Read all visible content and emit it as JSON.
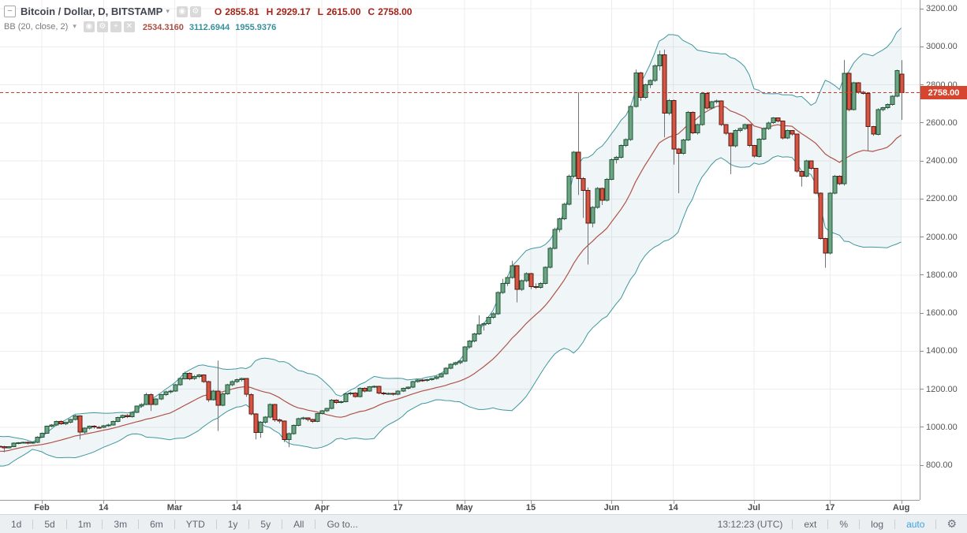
{
  "legend": {
    "symbol_row": {
      "collapse_glyph": "−",
      "title": "Bitcoin / Dollar, D, BITSTAMP",
      "caret": "▾",
      "buttons": [
        {
          "name": "hide-symbol-button",
          "glyph": "◉"
        },
        {
          "name": "symbol-settings-button",
          "glyph": "⚙"
        }
      ],
      "ohlc": [
        [
          "O",
          "2855.81"
        ],
        [
          "H",
          "2929.17"
        ],
        [
          "L",
          "2615.00"
        ],
        [
          "C",
          "2758.00"
        ]
      ],
      "ohlc_color": "#a42318"
    },
    "indicator_row": {
      "title": "BB (20, close, 2)",
      "caret": "▾",
      "buttons": [
        {
          "name": "hide-indicator-button",
          "glyph": "◉"
        },
        {
          "name": "indicator-settings-button",
          "glyph": "⚙"
        },
        {
          "name": "add-indicator-button",
          "glyph": "+"
        },
        {
          "name": "remove-indicator-button",
          "glyph": "✕"
        }
      ],
      "values": [
        {
          "text": "2534.3160",
          "color": "#ab4d43"
        },
        {
          "text": "3112.6944",
          "color": "#36909c"
        },
        {
          "text": "1955.9376",
          "color": "#36909c"
        }
      ]
    }
  },
  "toolbar": {
    "ranges": [
      "1d",
      "5d",
      "1m",
      "3m",
      "6m",
      "YTD",
      "1y",
      "5y",
      "All"
    ],
    "goto_label": "Go to...",
    "clock": "13:12:23 (UTC)",
    "right_items": [
      {
        "label": "ext",
        "color": "#5d6570"
      },
      {
        "label": "%",
        "color": "#5d6570"
      },
      {
        "label": "log",
        "color": "#5d6570"
      },
      {
        "label": "auto",
        "color": "#3aa3e3"
      }
    ],
    "gear_glyph": "⚙"
  },
  "chart_data": {
    "type": "candlestick",
    "title": "Bitcoin / Dollar, D, BITSTAMP",
    "interval": "D",
    "exchange": "BITSTAMP",
    "indicator": {
      "name": "BB",
      "params": "(20, close, 2)",
      "window": 20,
      "mult": 2,
      "values": [
        2534.316,
        3112.6944,
        1955.9376
      ]
    },
    "last_price": {
      "text": "2758.00",
      "value": 2758,
      "tag_color": "#d6452f",
      "line_color": "#cf352a"
    },
    "ohlc_current": {
      "open": 2855.81,
      "high": 2929.17,
      "low": 2615.0,
      "close": 2758.0
    },
    "grid": true,
    "y_axis": {
      "min": 800,
      "max": 3200,
      "step": 200
    },
    "x_axis": {
      "labels": [
        {
          "text": "Feb",
          "day": 0
        },
        {
          "text": "14",
          "day": 13
        },
        {
          "text": "Mar",
          "day": 28
        },
        {
          "text": "14",
          "day": 41
        },
        {
          "text": "Apr",
          "day": 59
        },
        {
          "text": "17",
          "day": 75
        },
        {
          "text": "May",
          "day": 89
        },
        {
          "text": "15",
          "day": 103
        },
        {
          "text": "Jun",
          "day": 120
        },
        {
          "text": "14",
          "day": 133
        },
        {
          "text": "Jul",
          "day": 150
        },
        {
          "text": "17",
          "day": 166
        },
        {
          "text": "Aug",
          "day": 181
        }
      ]
    },
    "layout": {
      "bars_before_feb1": 30
    },
    "colors": {
      "up_fill": "#6ba583",
      "up_border": "#225437",
      "down_fill": "#d75442",
      "down_border": "#5b1a13",
      "wick": "#737375",
      "band": "#3f97a0",
      "band_fill": "rgba(67,145,155,0.08)",
      "mid": "#b0524a",
      "grid": "#ececee",
      "axis_text": "#555555"
    },
    "candles": [
      [
        910,
        912,
        898,
        905
      ],
      [
        905,
        908,
        886,
        890
      ],
      [
        890,
        903,
        885,
        900
      ],
      [
        900,
        902,
        812,
        820
      ],
      [
        820,
        824,
        770,
        785
      ],
      [
        785,
        810,
        780,
        805
      ],
      [
        805,
        822,
        800,
        818
      ],
      [
        818,
        834,
        812,
        830
      ],
      [
        830,
        842,
        824,
        838
      ],
      [
        838,
        903,
        832,
        900
      ],
      [
        900,
        908,
        890,
        896
      ],
      [
        896,
        910,
        892,
        906
      ],
      [
        906,
        912,
        898,
        903
      ],
      [
        903,
        908,
        892,
        898
      ],
      [
        898,
        902,
        888,
        893
      ],
      [
        893,
        897,
        884,
        890
      ],
      [
        890,
        899,
        885,
        896
      ],
      [
        896,
        906,
        891,
        902
      ],
      [
        902,
        907,
        894,
        898
      ],
      [
        898,
        903,
        890,
        895
      ],
      [
        895,
        904,
        891,
        900
      ],
      [
        900,
        905,
        892,
        898
      ],
      [
        898,
        902,
        868,
        892
      ],
      [
        892,
        900,
        888,
        897
      ],
      [
        897,
        920,
        895,
        916
      ],
      [
        916,
        922,
        910,
        919
      ],
      [
        919,
        924,
        914,
        921
      ],
      [
        921,
        925,
        910,
        915
      ],
      [
        915,
        923,
        912,
        920
      ],
      [
        920,
        952,
        916,
        948
      ],
      [
        948,
        972,
        944,
        968
      ],
      [
        968,
        1008,
        965,
        1005
      ],
      [
        1005,
        1016,
        998,
        1012
      ],
      [
        1012,
        1034,
        1006,
        1030
      ],
      [
        1030,
        1035,
        1012,
        1018
      ],
      [
        1018,
        1028,
        1010,
        1025
      ],
      [
        1025,
        1044,
        1020,
        1040
      ],
      [
        1040,
        1065,
        1035,
        1060
      ],
      [
        1060,
        1062,
        935,
        975
      ],
      [
        975,
        1000,
        962,
        995
      ],
      [
        995,
        1008,
        988,
        1005
      ],
      [
        1005,
        1010,
        992,
        1000
      ],
      [
        1000,
        1006,
        993,
        998
      ],
      [
        998,
        1012,
        995,
        1008
      ],
      [
        1008,
        1018,
        1002,
        1012
      ],
      [
        1012,
        1034,
        1008,
        1030
      ],
      [
        1030,
        1055,
        1026,
        1050
      ],
      [
        1050,
        1066,
        1044,
        1062
      ],
      [
        1062,
        1068,
        1048,
        1055
      ],
      [
        1055,
        1082,
        1050,
        1078
      ],
      [
        1078,
        1114,
        1074,
        1110
      ],
      [
        1110,
        1126,
        1102,
        1120
      ],
      [
        1120,
        1180,
        1115,
        1172
      ],
      [
        1172,
        1178,
        1085,
        1120
      ],
      [
        1120,
        1152,
        1114,
        1148
      ],
      [
        1148,
        1175,
        1142,
        1170
      ],
      [
        1170,
        1192,
        1164,
        1185
      ],
      [
        1185,
        1196,
        1176,
        1190
      ],
      [
        1190,
        1228,
        1186,
        1222
      ],
      [
        1222,
        1262,
        1218,
        1255
      ],
      [
        1255,
        1292,
        1250,
        1283
      ],
      [
        1283,
        1288,
        1246,
        1255
      ],
      [
        1255,
        1274,
        1248,
        1267
      ],
      [
        1267,
        1280,
        1258,
        1275
      ],
      [
        1275,
        1278,
        1232,
        1240
      ],
      [
        1240,
        1244,
        1132,
        1145
      ],
      [
        1145,
        1196,
        1140,
        1190
      ],
      [
        1190,
        1350,
        980,
        1116
      ],
      [
        1116,
        1182,
        1110,
        1176
      ],
      [
        1176,
        1228,
        1170,
        1222
      ],
      [
        1222,
        1246,
        1215,
        1240
      ],
      [
        1240,
        1256,
        1232,
        1250
      ],
      [
        1250,
        1260,
        1240,
        1255
      ],
      [
        1255,
        1258,
        1160,
        1172
      ],
      [
        1172,
        1178,
        1062,
        1070
      ],
      [
        1070,
        1074,
        936,
        972
      ],
      [
        972,
        1032,
        944,
        1025
      ],
      [
        1025,
        1058,
        1018,
        1052
      ],
      [
        1052,
        1125,
        1046,
        1120
      ],
      [
        1120,
        1122,
        1028,
        1038
      ],
      [
        1038,
        1046,
        1020,
        1032
      ],
      [
        1032,
        1035,
        922,
        935
      ],
      [
        935,
        972,
        894,
        966
      ],
      [
        966,
        1014,
        960,
        1010
      ],
      [
        1010,
        1050,
        1004,
        1045
      ],
      [
        1045,
        1055,
        1038,
        1048
      ],
      [
        1048,
        1052,
        1030,
        1040
      ],
      [
        1040,
        1044,
        1022,
        1030
      ],
      [
        1030,
        1075,
        1026,
        1071
      ],
      [
        1071,
        1090,
        1066,
        1085
      ],
      [
        1085,
        1102,
        1080,
        1098
      ],
      [
        1098,
        1148,
        1094,
        1143
      ],
      [
        1143,
        1146,
        1122,
        1130
      ],
      [
        1130,
        1140,
        1124,
        1134
      ],
      [
        1134,
        1180,
        1130,
        1175
      ],
      [
        1175,
        1186,
        1168,
        1180
      ],
      [
        1180,
        1184,
        1155,
        1160
      ],
      [
        1160,
        1210,
        1156,
        1205
      ],
      [
        1205,
        1210,
        1182,
        1190
      ],
      [
        1190,
        1216,
        1186,
        1212
      ],
      [
        1212,
        1220,
        1206,
        1215
      ],
      [
        1215,
        1218,
        1172,
        1180
      ],
      [
        1180,
        1186,
        1168,
        1175
      ],
      [
        1175,
        1182,
        1170,
        1178
      ],
      [
        1178,
        1181,
        1165,
        1172
      ],
      [
        1172,
        1194,
        1168,
        1190
      ],
      [
        1190,
        1208,
        1185,
        1204
      ],
      [
        1204,
        1214,
        1198,
        1210
      ],
      [
        1210,
        1244,
        1205,
        1240
      ],
      [
        1240,
        1252,
        1234,
        1248
      ],
      [
        1248,
        1253,
        1238,
        1245
      ],
      [
        1245,
        1255,
        1238,
        1250
      ],
      [
        1250,
        1260,
        1244,
        1255
      ],
      [
        1255,
        1270,
        1250,
        1265
      ],
      [
        1265,
        1285,
        1260,
        1280
      ],
      [
        1280,
        1315,
        1276,
        1310
      ],
      [
        1310,
        1336,
        1305,
        1330
      ],
      [
        1330,
        1344,
        1324,
        1338
      ],
      [
        1338,
        1352,
        1330,
        1347
      ],
      [
        1347,
        1426,
        1342,
        1421
      ],
      [
        1421,
        1458,
        1414,
        1452
      ],
      [
        1452,
        1496,
        1446,
        1490
      ],
      [
        1490,
        1588,
        1484,
        1537
      ],
      [
        1537,
        1552,
        1508,
        1544
      ],
      [
        1544,
        1584,
        1538,
        1578
      ],
      [
        1578,
        1604,
        1570,
        1596
      ],
      [
        1596,
        1714,
        1590,
        1707
      ],
      [
        1707,
        1780,
        1700,
        1755
      ],
      [
        1755,
        1796,
        1742,
        1787
      ],
      [
        1787,
        1875,
        1780,
        1848
      ],
      [
        1848,
        1852,
        1656,
        1724
      ],
      [
        1724,
        1776,
        1716,
        1770
      ],
      [
        1770,
        1814,
        1762,
        1808
      ],
      [
        1808,
        1812,
        1725,
        1738
      ],
      [
        1738,
        1756,
        1726,
        1734
      ],
      [
        1734,
        1762,
        1728,
        1755
      ],
      [
        1755,
        1846,
        1750,
        1840
      ],
      [
        1840,
        1948,
        1834,
        1940
      ],
      [
        1940,
        2048,
        1934,
        2040
      ],
      [
        2040,
        2102,
        2025,
        2095
      ],
      [
        2095,
        2180,
        2088,
        2173
      ],
      [
        2173,
        2328,
        2166,
        2320
      ],
      [
        2320,
        2452,
        2312,
        2445
      ],
      [
        2445,
        2760,
        2220,
        2306
      ],
      [
        2306,
        2315,
        2100,
        2245
      ],
      [
        2245,
        2260,
        1855,
        2072
      ],
      [
        2072,
        2162,
        2050,
        2155
      ],
      [
        2155,
        2262,
        2148,
        2255
      ],
      [
        2255,
        2260,
        2168,
        2193
      ],
      [
        2193,
        2310,
        2186,
        2303
      ],
      [
        2303,
        2414,
        2298,
        2407
      ],
      [
        2407,
        2426,
        2386,
        2419
      ],
      [
        2419,
        2486,
        2412,
        2480
      ],
      [
        2480,
        2518,
        2472,
        2511
      ],
      [
        2511,
        2692,
        2505,
        2686
      ],
      [
        2686,
        2880,
        2680,
        2863
      ],
      [
        2863,
        2868,
        2715,
        2733
      ],
      [
        2733,
        2806,
        2726,
        2800
      ],
      [
        2800,
        2828,
        2782,
        2822
      ],
      [
        2822,
        2908,
        2815,
        2900
      ],
      [
        2900,
        2980,
        2875,
        2958
      ],
      [
        2958,
        2985,
        2523,
        2651
      ],
      [
        2651,
        2725,
        2640,
        2718
      ],
      [
        2718,
        2722,
        2380,
        2463
      ],
      [
        2463,
        2468,
        2230,
        2440
      ],
      [
        2440,
        2516,
        2432,
        2510
      ],
      [
        2510,
        2662,
        2504,
        2655
      ],
      [
        2655,
        2660,
        2540,
        2548
      ],
      [
        2548,
        2596,
        2538,
        2590
      ],
      [
        2590,
        2762,
        2584,
        2755
      ],
      [
        2755,
        2758,
        2668,
        2677
      ],
      [
        2677,
        2716,
        2670,
        2710
      ],
      [
        2710,
        2722,
        2700,
        2715
      ],
      [
        2715,
        2718,
        2582,
        2590
      ],
      [
        2590,
        2594,
        2536,
        2545
      ],
      [
        2545,
        2548,
        2330,
        2478
      ],
      [
        2478,
        2566,
        2470,
        2560
      ],
      [
        2560,
        2576,
        2550,
        2570
      ],
      [
        2570,
        2596,
        2562,
        2590
      ],
      [
        2590,
        2592,
        2472,
        2480
      ],
      [
        2480,
        2484,
        2416,
        2424
      ],
      [
        2424,
        2520,
        2418,
        2515
      ],
      [
        2515,
        2576,
        2508,
        2570
      ],
      [
        2570,
        2606,
        2562,
        2600
      ],
      [
        2600,
        2630,
        2594,
        2625
      ],
      [
        2625,
        2628,
        2602,
        2610
      ],
      [
        2610,
        2612,
        2512,
        2520
      ],
      [
        2520,
        2565,
        2514,
        2560
      ],
      [
        2560,
        2562,
        2532,
        2540
      ],
      [
        2540,
        2542,
        2338,
        2345
      ],
      [
        2345,
        2348,
        2265,
        2320
      ],
      [
        2320,
        2406,
        2314,
        2400
      ],
      [
        2400,
        2402,
        2352,
        2360
      ],
      [
        2360,
        2362,
        2224,
        2230
      ],
      [
        2230,
        2234,
        1986,
        1992
      ],
      [
        1992,
        1996,
        1838,
        1914
      ],
      [
        1914,
        2236,
        1908,
        2230
      ],
      [
        2230,
        2326,
        2224,
        2320
      ],
      [
        2320,
        2324,
        2272,
        2280
      ],
      [
        2280,
        2930,
        2270,
        2860
      ],
      [
        2860,
        2865,
        2660,
        2670
      ],
      [
        2670,
        2816,
        2664,
        2810
      ],
      [
        2810,
        2814,
        2752,
        2760
      ],
      [
        2760,
        2768,
        2748,
        2755
      ],
      [
        2755,
        2758,
        2450,
        2580
      ],
      [
        2580,
        2584,
        2532,
        2540
      ],
      [
        2540,
        2676,
        2534,
        2670
      ],
      [
        2670,
        2684,
        2660,
        2679
      ],
      [
        2679,
        2702,
        2672,
        2697
      ],
      [
        2697,
        2745,
        2690,
        2740
      ],
      [
        2740,
        2880,
        2734,
        2875
      ],
      [
        2855.81,
        2929.17,
        2615,
        2758
      ]
    ]
  }
}
